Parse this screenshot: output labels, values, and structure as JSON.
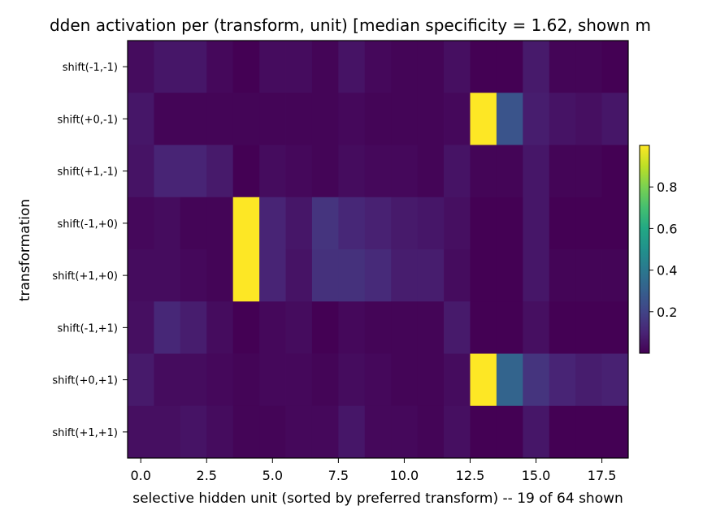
{
  "chart_data": {
    "type": "heatmap",
    "title": "dden activation per (transform, unit)  [median specificity = 1.62, shown m",
    "xlabel": "selective hidden unit (sorted by preferred transform)  -- 19 of 64 shown",
    "ylabel": "transformation",
    "x": [
      0,
      1,
      2,
      3,
      4,
      5,
      6,
      7,
      8,
      9,
      10,
      11,
      12,
      13,
      14,
      15,
      16,
      17,
      18
    ],
    "xlim": [
      -0.5,
      18.5
    ],
    "x_ticks": [
      0.0,
      2.5,
      5.0,
      7.5,
      10.0,
      12.5,
      15.0,
      17.5
    ],
    "x_tick_labels": [
      "0.0",
      "2.5",
      "5.0",
      "7.5",
      "10.0",
      "12.5",
      "15.0",
      "17.5"
    ],
    "rows": [
      "shift(-1,-1)",
      "shift(+0,-1)",
      "shift(+1,-1)",
      "shift(-1,+0)",
      "shift(+1,+0)",
      "shift(-1,+1)",
      "shift(+0,+1)",
      "shift(+1,+1)"
    ],
    "values": [
      [
        0.03,
        0.06,
        0.06,
        0.02,
        0.0,
        0.03,
        0.03,
        0.01,
        0.05,
        0.02,
        0.01,
        0.01,
        0.04,
        0.0,
        0.0,
        0.07,
        0.01,
        0.01,
        0.0
      ],
      [
        0.06,
        0.01,
        0.01,
        0.01,
        0.01,
        0.01,
        0.01,
        0.01,
        0.02,
        0.01,
        0.01,
        0.01,
        0.02,
        1.0,
        0.26,
        0.08,
        0.05,
        0.04,
        0.06
      ],
      [
        0.05,
        0.1,
        0.1,
        0.07,
        0.0,
        0.03,
        0.02,
        0.01,
        0.03,
        0.02,
        0.02,
        0.01,
        0.05,
        0.01,
        0.01,
        0.06,
        0.01,
        0.01,
        0.0
      ],
      [
        0.02,
        0.03,
        0.01,
        0.01,
        1.0,
        0.1,
        0.06,
        0.15,
        0.11,
        0.09,
        0.07,
        0.06,
        0.04,
        0.0,
        0.0,
        0.06,
        0.0,
        0.0,
        0.0
      ],
      [
        0.03,
        0.03,
        0.02,
        0.01,
        1.0,
        0.1,
        0.05,
        0.14,
        0.14,
        0.12,
        0.08,
        0.08,
        0.03,
        0.0,
        0.0,
        0.06,
        0.01,
        0.01,
        0.01
      ],
      [
        0.04,
        0.11,
        0.08,
        0.03,
        0.0,
        0.02,
        0.03,
        0.0,
        0.02,
        0.01,
        0.01,
        0.01,
        0.07,
        0.0,
        0.0,
        0.04,
        0.0,
        0.0,
        0.0
      ],
      [
        0.07,
        0.03,
        0.03,
        0.02,
        0.01,
        0.02,
        0.02,
        0.01,
        0.03,
        0.02,
        0.01,
        0.01,
        0.03,
        1.0,
        0.32,
        0.15,
        0.1,
        0.08,
        0.09
      ],
      [
        0.04,
        0.04,
        0.05,
        0.03,
        0.01,
        0.01,
        0.02,
        0.02,
        0.06,
        0.02,
        0.02,
        0.01,
        0.04,
        0.0,
        0.0,
        0.06,
        0.0,
        0.0,
        0.0
      ]
    ],
    "colormap": "viridis",
    "colorbar": {
      "range": [
        0.0,
        1.0
      ],
      "ticks": [
        0.2,
        0.4,
        0.6,
        0.8
      ],
      "tick_labels": [
        "0.2",
        "0.4",
        "0.6",
        "0.8"
      ]
    },
    "grid": false
  }
}
